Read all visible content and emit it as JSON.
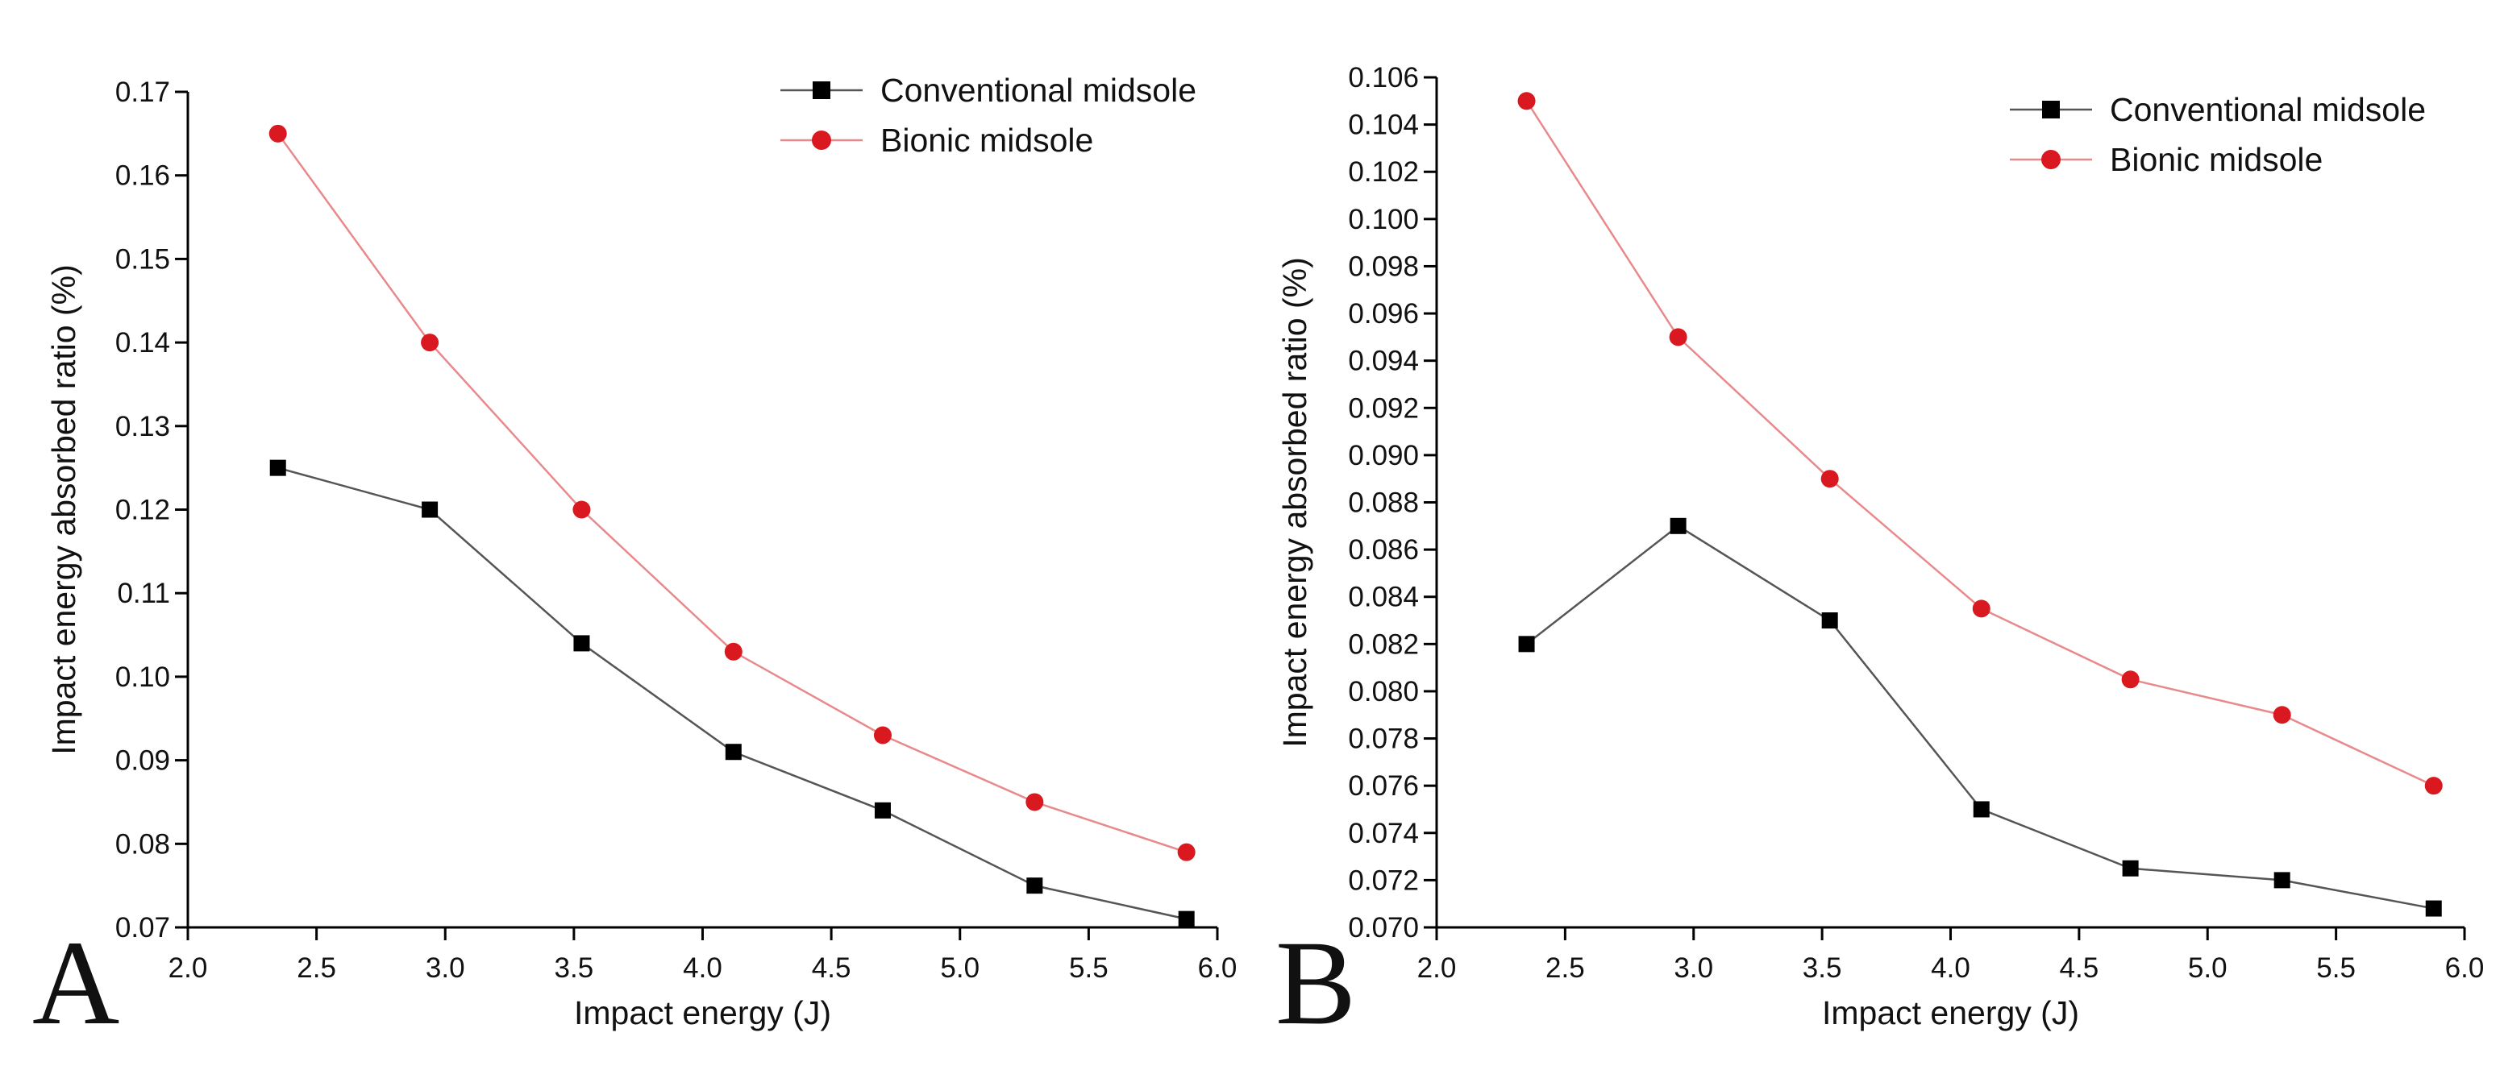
{
  "figure": {
    "panels": [
      "A",
      "B"
    ]
  },
  "colors": {
    "conventional": "#000000",
    "bionic": "#d9191f",
    "bionic_line": "#e8898c",
    "conventional_line": "#555555"
  },
  "chart_data": [
    {
      "panel": "A",
      "type": "line",
      "title": "",
      "xlabel": "Impact energy (J)",
      "ylabel": "Impact energy absorbed ratio (%)",
      "xlim": [
        2.0,
        6.0
      ],
      "ylim": [
        0.07,
        0.17
      ],
      "xticks": [
        "2.0",
        "2.5",
        "3.0",
        "3.5",
        "4.0",
        "4.5",
        "5.0",
        "5.5",
        "6.0"
      ],
      "yticks": [
        "0.07",
        "0.08",
        "0.09",
        "0.10",
        "0.11",
        "0.12",
        "0.13",
        "0.14",
        "0.15",
        "0.16",
        "0.17"
      ],
      "x": [
        2.35,
        2.94,
        3.53,
        4.12,
        4.7,
        5.29,
        5.88
      ],
      "legend_position": "top-right",
      "series": [
        {
          "name": "Conventional midsole",
          "marker": "square",
          "color_key": "conventional",
          "values": [
            0.125,
            0.12,
            0.104,
            0.091,
            0.084,
            0.075,
            0.071
          ]
        },
        {
          "name": "Bionic midsole",
          "marker": "circle",
          "color_key": "bionic",
          "values": [
            0.165,
            0.14,
            0.12,
            0.103,
            0.093,
            0.085,
            0.079
          ]
        }
      ]
    },
    {
      "panel": "B",
      "type": "line",
      "title": "",
      "xlabel": "Impact energy (J)",
      "ylabel": "Impact energy absorbed ratio (%)",
      "xlim": [
        2.0,
        6.0
      ],
      "ylim": [
        0.07,
        0.106
      ],
      "xticks": [
        "2.0",
        "2.5",
        "3.0",
        "3.5",
        "4.0",
        "4.5",
        "5.0",
        "5.5",
        "6.0"
      ],
      "yticks": [
        "0.070",
        "0.072",
        "0.074",
        "0.076",
        "0.078",
        "0.080",
        "0.082",
        "0.084",
        "0.086",
        "0.088",
        "0.090",
        "0.092",
        "0.094",
        "0.096",
        "0.098",
        "0.100",
        "0.102",
        "0.104",
        "0.106"
      ],
      "x": [
        2.35,
        2.94,
        3.53,
        4.12,
        4.7,
        5.29,
        5.88
      ],
      "legend_position": "top-right",
      "series": [
        {
          "name": "Conventional midsole",
          "marker": "square",
          "color_key": "conventional",
          "values": [
            0.082,
            0.087,
            0.083,
            0.075,
            0.0725,
            0.072,
            0.0708
          ]
        },
        {
          "name": "Bionic midsole",
          "marker": "circle",
          "color_key": "bionic",
          "values": [
            0.105,
            0.095,
            0.089,
            0.0835,
            0.0805,
            0.079,
            0.076
          ]
        }
      ]
    }
  ]
}
